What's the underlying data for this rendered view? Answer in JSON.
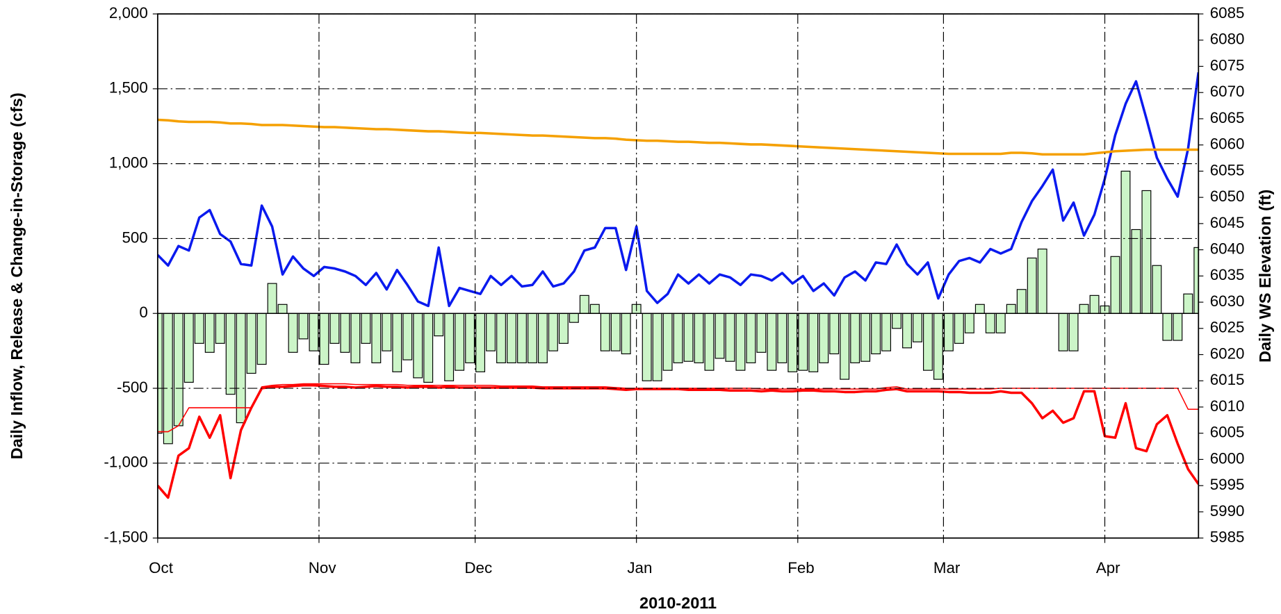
{
  "chart_data": {
    "type": "combo",
    "x_label": "2010-2011",
    "y_label": "Daily Inflow, Release & Change-in-Storage (cfs)",
    "y2_label": "Daily WS Elevation  (ft)",
    "xlim": [
      0,
      200
    ],
    "xticks": [
      {
        "value": 0,
        "label": "Oct"
      },
      {
        "value": 31,
        "label": "Nov"
      },
      {
        "value": 61,
        "label": "Dec"
      },
      {
        "value": 92,
        "label": "Jan"
      },
      {
        "value": 123,
        "label": "Feb"
      },
      {
        "value": 151,
        "label": "Mar"
      },
      {
        "value": 182,
        "label": "Apr"
      }
    ],
    "ylim": [
      -1500,
      2000
    ],
    "yticks": [
      {
        "value": -1500,
        "label": "-1,500"
      },
      {
        "value": -1000,
        "label": "-1,000"
      },
      -500,
      0,
      500,
      {
        "value": 1000,
        "label": "1,000"
      },
      {
        "value": 1500,
        "label": "1,500"
      },
      {
        "value": 2000,
        "label": "2,000"
      }
    ],
    "y2lim": [
      5985,
      6085
    ],
    "y2ticks": [
      5985,
      5990,
      5995,
      6000,
      6005,
      6010,
      6015,
      6020,
      6025,
      6030,
      6035,
      6040,
      6045,
      6050,
      6055,
      6060,
      6065,
      6070,
      6075,
      6080,
      6085
    ],
    "grid": true,
    "x": [
      0,
      2,
      4,
      6,
      8,
      10,
      12,
      14,
      16,
      18,
      20,
      22,
      24,
      26,
      28,
      30,
      32,
      34,
      36,
      38,
      40,
      42,
      44,
      46,
      48,
      50,
      52,
      54,
      56,
      58,
      60,
      62,
      64,
      66,
      68,
      70,
      72,
      74,
      76,
      78,
      80,
      82,
      84,
      86,
      88,
      90,
      92,
      94,
      96,
      98,
      100,
      102,
      104,
      106,
      108,
      110,
      112,
      114,
      116,
      118,
      120,
      122,
      124,
      126,
      128,
      130,
      132,
      134,
      136,
      138,
      140,
      142,
      144,
      146,
      148,
      150,
      152,
      154,
      156,
      158,
      160,
      162,
      164,
      166,
      168,
      170,
      172,
      174,
      176,
      178,
      180,
      182,
      184,
      186,
      188,
      190,
      192,
      194,
      196,
      198,
      200
    ],
    "series": [
      {
        "type": "bar",
        "color": "#ccf5c8",
        "values": [
          -800,
          -870,
          -750,
          -460,
          -200,
          -260,
          -200,
          -540,
          -730,
          -400,
          -340,
          200,
          60,
          -260,
          -170,
          -250,
          -340,
          -200,
          -260,
          -330,
          -200,
          -330,
          -250,
          -390,
          -310,
          -430,
          -460,
          -150,
          -450,
          -380,
          -330,
          -390,
          -250,
          -330,
          -330,
          -330,
          -330,
          -330,
          -250,
          -200,
          -60,
          120,
          60,
          -250,
          -250,
          -270,
          60,
          -450,
          -450,
          -380,
          -330,
          -320,
          -330,
          -380,
          -300,
          -320,
          -380,
          -330,
          -260,
          -380,
          -330,
          -390,
          -380,
          -390,
          -330,
          -270,
          -440,
          -330,
          -320,
          -270,
          -250,
          -100,
          -230,
          -190,
          -380,
          -440,
          -250,
          -200,
          -130,
          60,
          -130,
          -130,
          60,
          160,
          370,
          430,
          0,
          -250,
          -250,
          60,
          120,
          50,
          380,
          950,
          560,
          820,
          320,
          -180,
          -180,
          130,
          440
        ]
      },
      {
        "type": "line",
        "color": "#0a1aee",
        "width": 3,
        "values": [
          390,
          320,
          450,
          420,
          640,
          690,
          530,
          480,
          330,
          320,
          720,
          580,
          260,
          380,
          300,
          250,
          310,
          300,
          280,
          250,
          190,
          270,
          160,
          290,
          190,
          80,
          50,
          440,
          50,
          170,
          150,
          130,
          250,
          190,
          250,
          180,
          190,
          280,
          180,
          200,
          280,
          420,
          440,
          570,
          570,
          290,
          580,
          150,
          70,
          130,
          260,
          200,
          260,
          200,
          260,
          240,
          190,
          260,
          250,
          220,
          270,
          200,
          250,
          150,
          200,
          120,
          240,
          280,
          220,
          340,
          330,
          460,
          330,
          260,
          340,
          100,
          260,
          350,
          370,
          340,
          430,
          400,
          430,
          610,
          750,
          850,
          960,
          620,
          740,
          520,
          660,
          900,
          1190,
          1400,
          1550,
          1300,
          1040,
          900,
          780,
          1100,
          1610
        ]
      },
      {
        "type": "line",
        "color": "#ff0000",
        "width": 3,
        "values": [
          -1150,
          -1230,
          -950,
          -900,
          -690,
          -830,
          -680,
          -1100,
          -780,
          -630,
          -500,
          -490,
          -490,
          -485,
          -480,
          -480,
          -485,
          -490,
          -490,
          -495,
          -490,
          -485,
          -490,
          -490,
          -495,
          -490,
          -490,
          -495,
          -490,
          -495,
          -495,
          -495,
          -495,
          -495,
          -495,
          -495,
          -495,
          -500,
          -500,
          -500,
          -500,
          -500,
          -500,
          -500,
          -505,
          -510,
          -505,
          -505,
          -505,
          -505,
          -505,
          -510,
          -510,
          -510,
          -510,
          -515,
          -515,
          -515,
          -520,
          -515,
          -520,
          -520,
          -515,
          -515,
          -520,
          -520,
          -525,
          -525,
          -520,
          -520,
          -510,
          -505,
          -520,
          -520,
          -520,
          -520,
          -525,
          -525,
          -530,
          -530,
          -530,
          -520,
          -530,
          -530,
          -600,
          -700,
          -650,
          -730,
          -700,
          -520,
          -520,
          -820,
          -830,
          -600,
          -900,
          -920,
          -740,
          -680,
          -870,
          -1040,
          -1140
        ]
      },
      {
        "type": "line",
        "color": "#ff0000",
        "width": 1.3,
        "values": [
          -790,
          -790,
          -750,
          -630,
          -630,
          -630,
          -630,
          -630,
          -630,
          -630,
          -490,
          -480,
          -475,
          -475,
          -470,
          -470,
          -470,
          -470,
          -470,
          -475,
          -475,
          -475,
          -475,
          -475,
          -480,
          -480,
          -480,
          -480,
          -480,
          -480,
          -480,
          -480,
          -480,
          -485,
          -485,
          -485,
          -485,
          -490,
          -490,
          -490,
          -490,
          -490,
          -490,
          -490,
          -495,
          -500,
          -500,
          -500,
          -500,
          -500,
          -500,
          -500,
          -500,
          -500,
          -500,
          -500,
          -500,
          -500,
          -505,
          -505,
          -505,
          -505,
          -505,
          -505,
          -505,
          -505,
          -505,
          -505,
          -505,
          -505,
          -495,
          -490,
          -505,
          -505,
          -505,
          -505,
          -505,
          -505,
          -505,
          -505,
          -505,
          -500,
          -500,
          -500,
          -500,
          -500,
          -500,
          -500,
          -500,
          -500,
          -500,
          -500,
          -500,
          -500,
          -500,
          -500,
          -500,
          -500,
          -500,
          -640,
          -640
        ]
      },
      {
        "type": "line",
        "axis": "y2",
        "color": "#f5a000",
        "width": 3,
        "values": [
          6064.8,
          6064.7,
          6064.5,
          6064.4,
          6064.4,
          6064.4,
          6064.3,
          6064.1,
          6064.1,
          6064.0,
          6063.8,
          6063.8,
          6063.8,
          6063.7,
          6063.6,
          6063.5,
          6063.4,
          6063.4,
          6063.3,
          6063.2,
          6063.1,
          6063.0,
          6063.0,
          6062.9,
          6062.8,
          6062.7,
          6062.6,
          6062.6,
          6062.5,
          6062.4,
          6062.3,
          6062.3,
          6062.2,
          6062.1,
          6062.0,
          6061.9,
          6061.8,
          6061.8,
          6061.7,
          6061.6,
          6061.5,
          6061.4,
          6061.3,
          6061.3,
          6061.2,
          6061.0,
          6060.9,
          6060.8,
          6060.8,
          6060.7,
          6060.6,
          6060.6,
          6060.5,
          6060.4,
          6060.4,
          6060.3,
          6060.2,
          6060.1,
          6060.1,
          6060.0,
          6059.9,
          6059.8,
          6059.7,
          6059.6,
          6059.5,
          6059.4,
          6059.3,
          6059.2,
          6059.1,
          6059.0,
          6058.9,
          6058.8,
          6058.7,
          6058.6,
          6058.5,
          6058.4,
          6058.3,
          6058.3,
          6058.3,
          6058.3,
          6058.3,
          6058.3,
          6058.5,
          6058.5,
          6058.4,
          6058.2,
          6058.2,
          6058.2,
          6058.2,
          6058.2,
          6058.4,
          6058.6,
          6058.8,
          6058.9,
          6059.0,
          6059.1,
          6059.1,
          6059.1,
          6059.1,
          6059.1,
          6059.1
        ]
      }
    ]
  }
}
